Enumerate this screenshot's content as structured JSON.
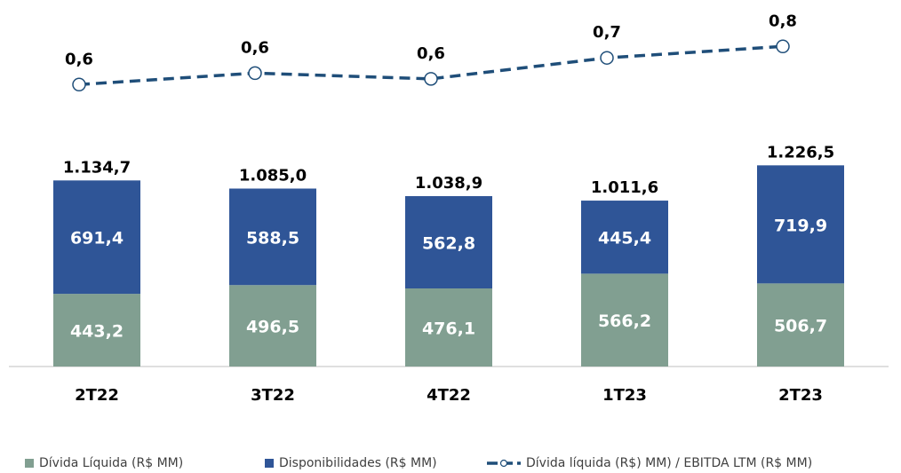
{
  "chart_data": {
    "type": "bar",
    "stacked": true,
    "categories": [
      "2T22",
      "3T22",
      "4T22",
      "1T23",
      "2T23"
    ],
    "series": [
      {
        "name": "Dívida Líquida (R$ MM)",
        "color": "#819f91",
        "values": [
          443.2,
          496.5,
          476.1,
          566.2,
          506.7
        ],
        "value_labels": [
          "443,2",
          "496,5",
          "476,1",
          "566,2",
          "506,7"
        ]
      },
      {
        "name": "Disponibilidades (R$ MM)",
        "color": "#2f5597",
        "values": [
          691.4,
          588.5,
          562.8,
          445.4,
          719.9
        ],
        "value_labels": [
          "691,4",
          "588,5",
          "562,8",
          "445,4",
          "719,9"
        ]
      },
      {
        "name": "Dívida líquida (R$) MM) / EBITDA LTM (R$ MM)",
        "type": "line",
        "axis": "y2",
        "color": "#1f4e79",
        "values": [
          0.58,
          0.64,
          0.61,
          0.72,
          0.78
        ],
        "value_labels": [
          "0,6",
          "0,6",
          "0,6",
          "0,7",
          "0,8"
        ]
      }
    ],
    "totals": [
      1134.7,
      1085.0,
      1038.9,
      1011.6,
      1226.5
    ],
    "total_labels": [
      "1.134,7",
      "1.085,0",
      "1.038,9",
      "1.011,6",
      "1.226,5"
    ],
    "ylim": [
      0,
      1250
    ],
    "y2lim": [
      0,
      1
    ],
    "legend": "bottom"
  }
}
